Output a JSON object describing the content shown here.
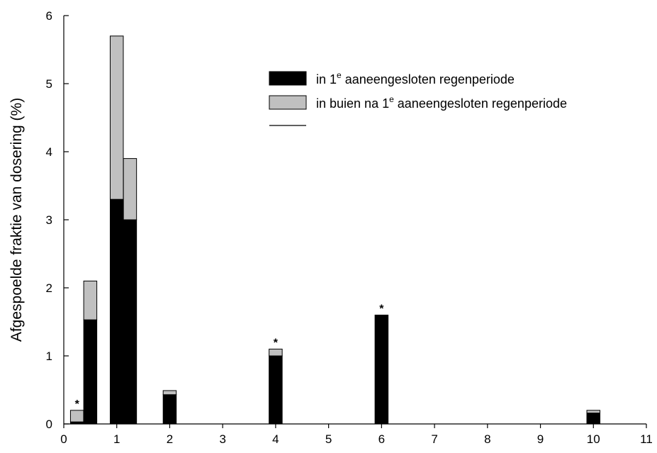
{
  "chart_data": {
    "type": "bar",
    "stacked": true,
    "title": "",
    "xlabel": "",
    "ylabel": "Afgespoelde fraktie van dosering (%)",
    "xlim": [
      0,
      11
    ],
    "ylim": [
      0,
      6
    ],
    "x_ticks": [
      "0",
      "1",
      "2",
      "3",
      "4",
      "5",
      "6",
      "7",
      "8",
      "9",
      "10",
      "11"
    ],
    "y_ticks": [
      "0",
      "1",
      "2",
      "3",
      "4",
      "5",
      "6"
    ],
    "grid": false,
    "legend_position": "top-right",
    "bars": [
      {
        "x": 0.25,
        "first": 0.03,
        "after": 0.17,
        "star": "*"
      },
      {
        "x": 0.5,
        "first": 1.53,
        "after": 0.57,
        "star": ""
      },
      {
        "x": 1.0,
        "first": 3.3,
        "after": 2.4,
        "star": ""
      },
      {
        "x": 1.25,
        "first": 3.0,
        "after": 0.9,
        "star": ""
      },
      {
        "x": 2.0,
        "first": 0.43,
        "after": 0.06,
        "star": ""
      },
      {
        "x": 4.0,
        "first": 1.0,
        "after": 0.1,
        "star": "*"
      },
      {
        "x": 6.0,
        "first": 1.6,
        "after": 0.0,
        "star": "*"
      },
      {
        "x": 10.0,
        "first": 0.16,
        "after": 0.04,
        "star": ""
      }
    ],
    "series": [
      {
        "key": "first",
        "name_prefix": "in 1",
        "name_sup": "e",
        "name_suffix": " aaneengesloten regenperiode",
        "color": "#000000"
      },
      {
        "key": "after",
        "name_prefix": "in buien na 1",
        "name_sup": "e",
        "name_suffix": " aaneengesloten regenperiode",
        "color": "#c0c0c0"
      }
    ]
  }
}
